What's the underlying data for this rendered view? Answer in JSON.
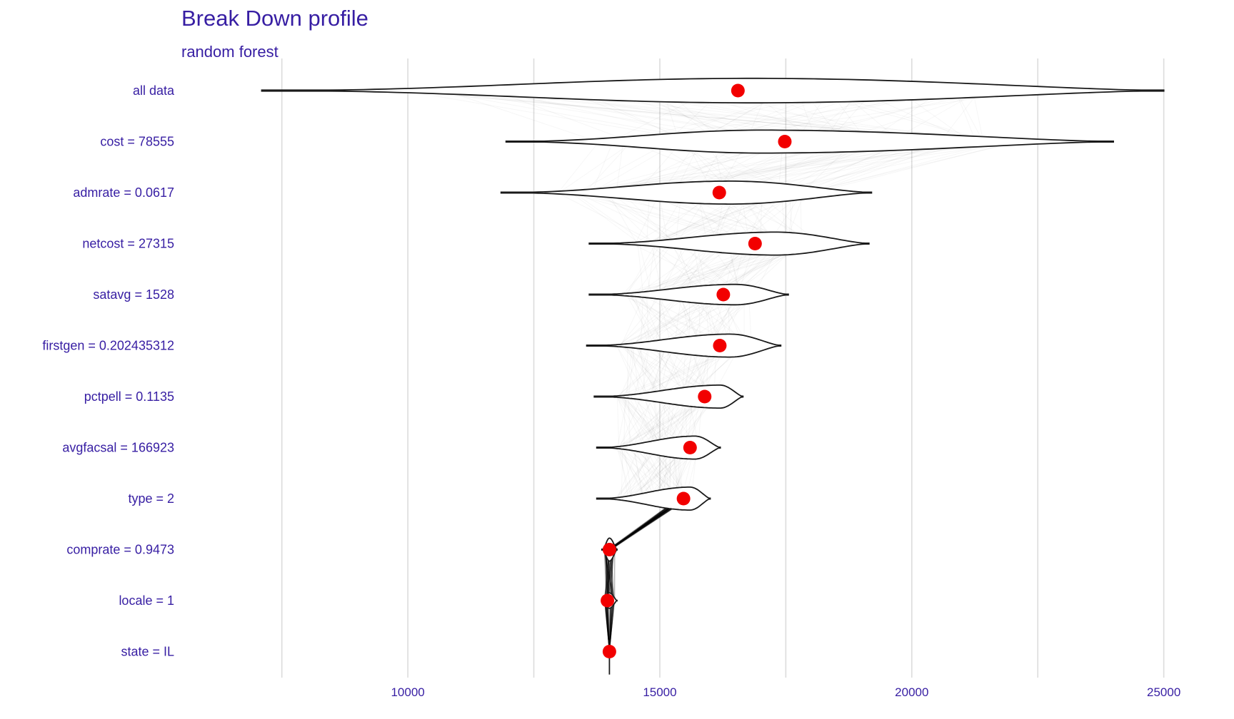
{
  "chart_data": {
    "type": "violin",
    "title": "Break Down profile",
    "subtitle": "random forest",
    "xlim": [
      6300,
      25600
    ],
    "x_ticks": [
      10000,
      15000,
      20000,
      25000
    ],
    "x_tick_labels": [
      "10000",
      "15000",
      "20000",
      "25000"
    ],
    "gridlines": [
      7500,
      10000,
      12500,
      15000,
      17500,
      20000,
      22500,
      25000
    ],
    "grid": true,
    "categories": [
      "all data",
      "cost = 78555",
      "admrate = 0.0617",
      "netcost = 27315",
      "satavg = 1528",
      "firstgen = 0.202435312",
      "pctpell = 0.1135",
      "avgfacsal = 166923",
      "type = 2",
      "comprate = 0.9473",
      "locale = 1",
      "state = IL"
    ],
    "means": [
      16550,
      17480,
      16180,
      16890,
      16260,
      16190,
      15890,
      15600,
      15470,
      14000,
      13960,
      14000
    ],
    "violins": [
      {
        "min": 7100,
        "max": 25000,
        "peak": 16800,
        "height": 0.48
      },
      {
        "min": 11950,
        "max": 24000,
        "peak": 17000,
        "height": 0.45
      },
      {
        "min": 11850,
        "max": 19200,
        "peak": 16400,
        "height": 0.45
      },
      {
        "min": 13600,
        "max": 19150,
        "peak": 17300,
        "height": 0.45
      },
      {
        "min": 13600,
        "max": 17550,
        "peak": 16500,
        "height": 0.4
      },
      {
        "min": 13550,
        "max": 17400,
        "peak": 16400,
        "height": 0.45
      },
      {
        "min": 13700,
        "max": 16650,
        "peak": 16200,
        "height": 0.45
      },
      {
        "min": 13750,
        "max": 16200,
        "peak": 15700,
        "height": 0.45
      },
      {
        "min": 13750,
        "max": 16000,
        "peak": 15600,
        "height": 0.45
      },
      {
        "min": 13850,
        "max": 14150,
        "peak": 14000,
        "height": 0.45
      },
      {
        "min": 13850,
        "max": 14150,
        "peak": 14000,
        "height": 0.3
      },
      {
        "min": 14000,
        "max": 14000,
        "peak": 14000,
        "height": 0.0
      }
    ],
    "colors": {
      "text": "#371ea3",
      "mean_point": "#f20000",
      "violin_outline": "#1a1a1a",
      "grid": "#dcdcdc"
    }
  }
}
